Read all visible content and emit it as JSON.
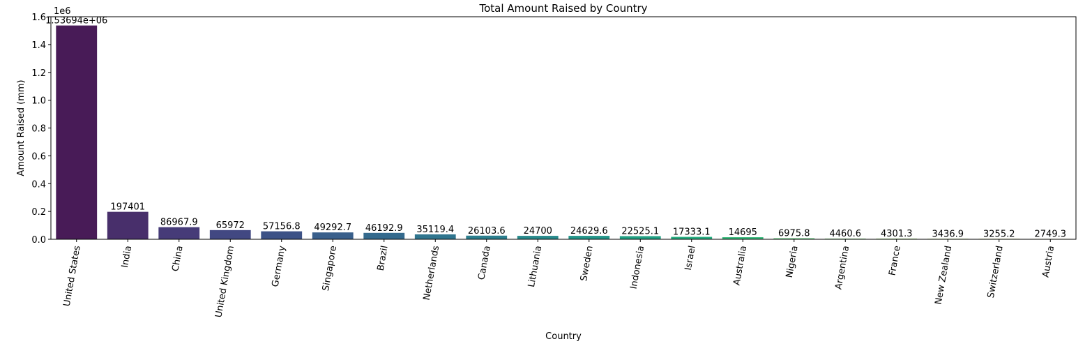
{
  "chart_data": {
    "type": "bar",
    "title": "Total Amount Raised by Country",
    "xlabel": "Country",
    "ylabel": "Amount Raised (mm)",
    "y_offset_text": "1e6",
    "ylim": [
      0,
      1600000
    ],
    "yticks": [
      0,
      200000,
      400000,
      600000,
      800000,
      1000000,
      1200000,
      1400000,
      1600000
    ],
    "ytick_labels": [
      "0.0",
      "0.2",
      "0.4",
      "0.6",
      "0.8",
      "1.0",
      "1.2",
      "1.4",
      "1.6"
    ],
    "grid": false,
    "categories": [
      "United States",
      "India",
      "China",
      "United Kingdom",
      "Germany",
      "Singapore",
      "Brazil",
      "Netherlands",
      "Canada",
      "Lithuania",
      "Sweden",
      "Indonesia",
      "Israel",
      "Australia",
      "Nigeria",
      "Argentina",
      "France",
      "New Zealand",
      "Switzerland",
      "Austria"
    ],
    "values": [
      1536940,
      197401,
      86967.9,
      65972,
      57156.8,
      49292.7,
      46192.9,
      35119.4,
      26103.6,
      24700,
      24629.6,
      22525.1,
      17333.1,
      14695,
      6975.8,
      4460.6,
      4301.3,
      3436.9,
      3255.2,
      2749.3
    ],
    "value_labels": [
      "1.53694e+06",
      "197401",
      "86967.9",
      "65972",
      "57156.8",
      "49292.7",
      "46192.9",
      "35119.4",
      "26103.6",
      "24700",
      "24629.6",
      "22525.1",
      "17333.1",
      "14695",
      "6975.8",
      "4460.6",
      "4301.3",
      "3436.9",
      "3255.2",
      "2749.3"
    ],
    "colors": [
      "#481b57",
      "#482f6b",
      "#463b78",
      "#424882",
      "#3d5286",
      "#395f8b",
      "#346a8d",
      "#2f758e",
      "#2c7f8e",
      "#288a8c",
      "#24968a",
      "#22a184",
      "#26ac7f",
      "#33b677",
      "#4bbf6a",
      "#63c75c",
      "#7ccf4e",
      "#9cd83b",
      "#bbde2a",
      "#dde31b"
    ]
  }
}
